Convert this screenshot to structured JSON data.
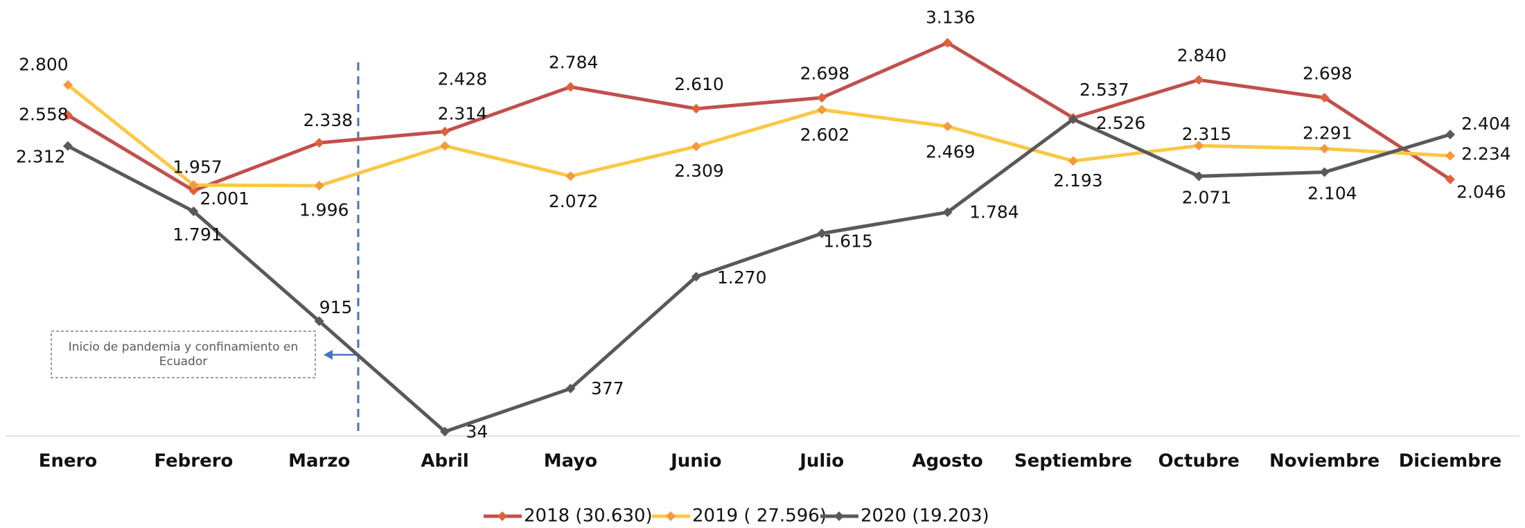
{
  "chart_data": {
    "type": "line",
    "categories": [
      "Enero",
      "Febrero",
      "Marzo",
      "Abril",
      "Mayo",
      "Junio",
      "Julio",
      "Agosto",
      "Septiembre",
      "Octubre",
      "Noviembre",
      "Diciembre"
    ],
    "series": [
      {
        "name": "2018 (30.630)",
        "color": "#c0504d",
        "marker_color": "#e0603a",
        "values": [
          2558,
          1957,
          2338,
          2428,
          2784,
          2610,
          2698,
          3136,
          2537,
          2840,
          2698,
          2046
        ],
        "value_labels": [
          "2.558",
          "1.957",
          "2.338",
          "2.428",
          "2.784",
          "2.610",
          "2.698",
          "3.136",
          "2.537",
          "2.840",
          "2.698",
          "2.046"
        ]
      },
      {
        "name": "2019 ( 27.596)",
        "color": "#fbc744",
        "marker_color": "#f39a3c",
        "values": [
          2800,
          2001,
          1996,
          2314,
          2072,
          2309,
          2602,
          2469,
          2193,
          2315,
          2291,
          2234
        ],
        "value_labels": [
          "2.800",
          "2.001",
          "1.996",
          "2.314",
          "2.072",
          "2.309",
          "2.602",
          "2.469",
          "2.193",
          "2.315",
          "2.291",
          "2.234"
        ]
      },
      {
        "name": "2020 (19.203)",
        "color": "#595959",
        "marker_color": "#595959",
        "values": [
          2312,
          1791,
          915,
          34,
          377,
          1270,
          1615,
          1784,
          2526,
          2071,
          2104,
          2404
        ],
        "value_labels": [
          "2.312",
          "1.791",
          "915",
          "34",
          "377",
          "1.270",
          "1.615",
          "1.784",
          "2.526",
          "2.071",
          "2.104",
          "2.404"
        ]
      }
    ],
    "ylim": [
      0,
      3400
    ],
    "annotation": "Inicio de pandemia y confinamiento en Ecuador",
    "legend": "bottom"
  }
}
